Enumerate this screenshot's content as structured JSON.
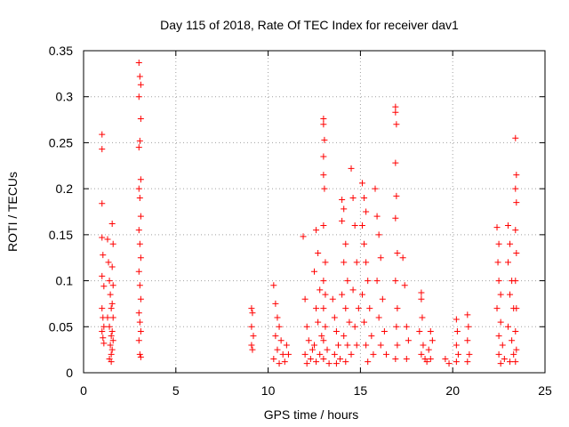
{
  "chart_data": {
    "type": "scatter",
    "title": "Day 115 of 2018, Rate Of TEC Index for receiver dav1",
    "xlabel": "GPS time / hours",
    "ylabel": "ROTI / TECUs",
    "xlim": [
      0,
      25
    ],
    "ylim": [
      0,
      0.35
    ],
    "xticks": [
      0,
      5,
      10,
      15,
      20,
      25
    ],
    "xtick_labels": [
      "0",
      "5",
      "10",
      "15",
      "20",
      "25"
    ],
    "yticks": [
      0,
      0.05,
      0.1,
      0.15,
      0.2,
      0.25,
      0.3,
      0.35
    ],
    "ytick_labels": [
      "0",
      "0.05",
      "0.1",
      "0.15",
      "0.2",
      "0.25",
      "0.3",
      "0.35"
    ],
    "grid": "dotted",
    "marker": "+",
    "marker_color": "#ff0000",
    "series": [
      {
        "name": "ROTI",
        "points": [
          [
            1.0,
            0.259
          ],
          [
            1.0,
            0.243
          ],
          [
            1.0,
            0.184
          ],
          [
            1.0,
            0.147
          ],
          [
            1.05,
            0.128
          ],
          [
            1.0,
            0.105
          ],
          [
            1.1,
            0.094
          ],
          [
            1.0,
            0.07
          ],
          [
            1.05,
            0.06
          ],
          [
            1.1,
            0.05
          ],
          [
            1.0,
            0.045
          ],
          [
            1.05,
            0.038
          ],
          [
            1.1,
            0.032
          ],
          [
            1.3,
            0.145
          ],
          [
            1.35,
            0.12
          ],
          [
            1.4,
            0.1
          ],
          [
            1.45,
            0.085
          ],
          [
            1.5,
            0.07
          ],
          [
            1.3,
            0.06
          ],
          [
            1.4,
            0.05
          ],
          [
            1.5,
            0.04
          ],
          [
            1.45,
            0.03
          ],
          [
            1.5,
            0.02
          ],
          [
            1.4,
            0.015
          ],
          [
            1.55,
            0.162
          ],
          [
            1.6,
            0.14
          ],
          [
            1.55,
            0.115
          ],
          [
            1.6,
            0.095
          ],
          [
            1.55,
            0.075
          ],
          [
            1.6,
            0.06
          ],
          [
            1.55,
            0.045
          ],
          [
            1.6,
            0.035
          ],
          [
            1.55,
            0.025
          ],
          [
            1.5,
            0.012
          ],
          [
            3.0,
            0.337
          ],
          [
            3.05,
            0.322
          ],
          [
            3.1,
            0.313
          ],
          [
            3.0,
            0.3
          ],
          [
            3.1,
            0.276
          ],
          [
            3.05,
            0.252
          ],
          [
            3.0,
            0.245
          ],
          [
            3.1,
            0.21
          ],
          [
            3.0,
            0.2
          ],
          [
            3.05,
            0.19
          ],
          [
            3.1,
            0.17
          ],
          [
            3.0,
            0.155
          ],
          [
            3.05,
            0.14
          ],
          [
            3.1,
            0.125
          ],
          [
            3.0,
            0.11
          ],
          [
            3.05,
            0.095
          ],
          [
            3.1,
            0.08
          ],
          [
            3.0,
            0.065
          ],
          [
            3.05,
            0.055
          ],
          [
            3.1,
            0.045
          ],
          [
            3.0,
            0.035
          ],
          [
            3.05,
            0.02
          ],
          [
            3.1,
            0.017
          ],
          [
            9.1,
            0.07
          ],
          [
            9.15,
            0.065
          ],
          [
            9.1,
            0.05
          ],
          [
            9.2,
            0.04
          ],
          [
            9.1,
            0.03
          ],
          [
            9.15,
            0.025
          ],
          [
            10.3,
            0.095
          ],
          [
            10.4,
            0.075
          ],
          [
            10.5,
            0.06
          ],
          [
            10.6,
            0.05
          ],
          [
            10.4,
            0.04
          ],
          [
            10.7,
            0.035
          ],
          [
            10.5,
            0.025
          ],
          [
            10.8,
            0.02
          ],
          [
            10.3,
            0.015
          ],
          [
            10.9,
            0.012
          ],
          [
            10.6,
            0.01
          ],
          [
            11.0,
            0.03
          ],
          [
            11.1,
            0.02
          ],
          [
            11.9,
            0.148
          ],
          [
            12.0,
            0.08
          ],
          [
            12.1,
            0.05
          ],
          [
            12.2,
            0.035
          ],
          [
            12.0,
            0.02
          ],
          [
            12.3,
            0.015
          ],
          [
            12.1,
            0.01
          ],
          [
            12.4,
            0.025
          ],
          [
            12.6,
            0.155
          ],
          [
            12.7,
            0.13
          ],
          [
            12.5,
            0.11
          ],
          [
            12.8,
            0.09
          ],
          [
            12.6,
            0.07
          ],
          [
            12.7,
            0.055
          ],
          [
            12.9,
            0.04
          ],
          [
            12.5,
            0.03
          ],
          [
            12.8,
            0.02
          ],
          [
            12.6,
            0.012
          ],
          [
            13.0,
            0.276
          ],
          [
            13.0,
            0.27
          ],
          [
            13.05,
            0.253
          ],
          [
            13.0,
            0.235
          ],
          [
            13.0,
            0.215
          ],
          [
            13.05,
            0.2
          ],
          [
            13.0,
            0.16
          ],
          [
            13.1,
            0.12
          ],
          [
            13.0,
            0.1
          ],
          [
            13.1,
            0.085
          ],
          [
            13.0,
            0.07
          ],
          [
            13.1,
            0.05
          ],
          [
            13.0,
            0.035
          ],
          [
            13.2,
            0.025
          ],
          [
            13.0,
            0.015
          ],
          [
            13.3,
            0.01
          ],
          [
            13.5,
            0.08
          ],
          [
            13.6,
            0.06
          ],
          [
            13.7,
            0.045
          ],
          [
            13.8,
            0.03
          ],
          [
            13.6,
            0.02
          ],
          [
            13.9,
            0.015
          ],
          [
            13.7,
            0.01
          ],
          [
            14.0,
            0.188
          ],
          [
            14.1,
            0.178
          ],
          [
            14.0,
            0.165
          ],
          [
            14.2,
            0.14
          ],
          [
            14.1,
            0.12
          ],
          [
            14.3,
            0.1
          ],
          [
            14.0,
            0.085
          ],
          [
            14.2,
            0.07
          ],
          [
            14.4,
            0.055
          ],
          [
            14.1,
            0.04
          ],
          [
            14.3,
            0.03
          ],
          [
            14.5,
            0.02
          ],
          [
            14.2,
            0.012
          ],
          [
            14.5,
            0.222
          ],
          [
            14.6,
            0.19
          ],
          [
            14.7,
            0.16
          ],
          [
            14.8,
            0.12
          ],
          [
            14.6,
            0.09
          ],
          [
            14.9,
            0.07
          ],
          [
            14.7,
            0.05
          ],
          [
            14.8,
            0.03
          ],
          [
            15.1,
            0.206
          ],
          [
            15.2,
            0.19
          ],
          [
            15.3,
            0.175
          ],
          [
            15.1,
            0.16
          ],
          [
            15.2,
            0.14
          ],
          [
            15.3,
            0.12
          ],
          [
            15.4,
            0.1
          ],
          [
            15.1,
            0.085
          ],
          [
            15.5,
            0.07
          ],
          [
            15.2,
            0.055
          ],
          [
            15.6,
            0.04
          ],
          [
            15.3,
            0.03
          ],
          [
            15.7,
            0.02
          ],
          [
            15.4,
            0.012
          ],
          [
            15.8,
            0.2
          ],
          [
            15.9,
            0.17
          ],
          [
            16.0,
            0.15
          ],
          [
            16.1,
            0.125
          ],
          [
            15.9,
            0.1
          ],
          [
            16.2,
            0.08
          ],
          [
            16.0,
            0.06
          ],
          [
            16.3,
            0.045
          ],
          [
            16.1,
            0.03
          ],
          [
            16.4,
            0.02
          ],
          [
            16.9,
            0.289
          ],
          [
            16.9,
            0.283
          ],
          [
            16.95,
            0.27
          ],
          [
            16.9,
            0.228
          ],
          [
            16.95,
            0.192
          ],
          [
            16.9,
            0.168
          ],
          [
            17.0,
            0.13
          ],
          [
            16.9,
            0.1
          ],
          [
            17.0,
            0.07
          ],
          [
            16.95,
            0.05
          ],
          [
            17.0,
            0.03
          ],
          [
            16.9,
            0.015
          ],
          [
            17.3,
            0.125
          ],
          [
            17.4,
            0.095
          ],
          [
            17.5,
            0.05
          ],
          [
            17.6,
            0.035
          ],
          [
            17.5,
            0.015
          ],
          [
            18.3,
            0.087
          ],
          [
            18.3,
            0.08
          ],
          [
            18.35,
            0.06
          ],
          [
            18.2,
            0.045
          ],
          [
            18.4,
            0.03
          ],
          [
            18.3,
            0.02
          ],
          [
            18.5,
            0.015
          ],
          [
            18.6,
            0.012
          ],
          [
            18.8,
            0.045
          ],
          [
            18.9,
            0.035
          ],
          [
            18.7,
            0.025
          ],
          [
            18.8,
            0.015
          ],
          [
            19.6,
            0.015
          ],
          [
            19.8,
            0.01
          ],
          [
            20.2,
            0.058
          ],
          [
            20.25,
            0.045
          ],
          [
            20.2,
            0.03
          ],
          [
            20.3,
            0.02
          ],
          [
            20.2,
            0.012
          ],
          [
            20.8,
            0.063
          ],
          [
            20.85,
            0.05
          ],
          [
            20.8,
            0.035
          ],
          [
            20.9,
            0.02
          ],
          [
            20.8,
            0.012
          ],
          [
            22.4,
            0.158
          ],
          [
            22.5,
            0.14
          ],
          [
            22.45,
            0.12
          ],
          [
            22.5,
            0.1
          ],
          [
            22.6,
            0.085
          ],
          [
            22.4,
            0.07
          ],
          [
            22.6,
            0.055
          ],
          [
            22.5,
            0.04
          ],
          [
            22.7,
            0.03
          ],
          [
            22.5,
            0.02
          ],
          [
            22.8,
            0.015
          ],
          [
            22.6,
            0.01
          ],
          [
            23.0,
            0.16
          ],
          [
            23.1,
            0.14
          ],
          [
            23.0,
            0.12
          ],
          [
            23.2,
            0.1
          ],
          [
            23.1,
            0.085
          ],
          [
            23.3,
            0.07
          ],
          [
            23.0,
            0.05
          ],
          [
            23.2,
            0.035
          ],
          [
            23.3,
            0.02
          ],
          [
            23.1,
            0.012
          ],
          [
            23.4,
            0.255
          ],
          [
            23.45,
            0.215
          ],
          [
            23.4,
            0.2
          ],
          [
            23.45,
            0.185
          ],
          [
            23.4,
            0.155
          ],
          [
            23.45,
            0.13
          ],
          [
            23.4,
            0.1
          ],
          [
            23.45,
            0.07
          ],
          [
            23.4,
            0.045
          ],
          [
            23.45,
            0.025
          ],
          [
            23.4,
            0.012
          ]
        ]
      }
    ]
  }
}
